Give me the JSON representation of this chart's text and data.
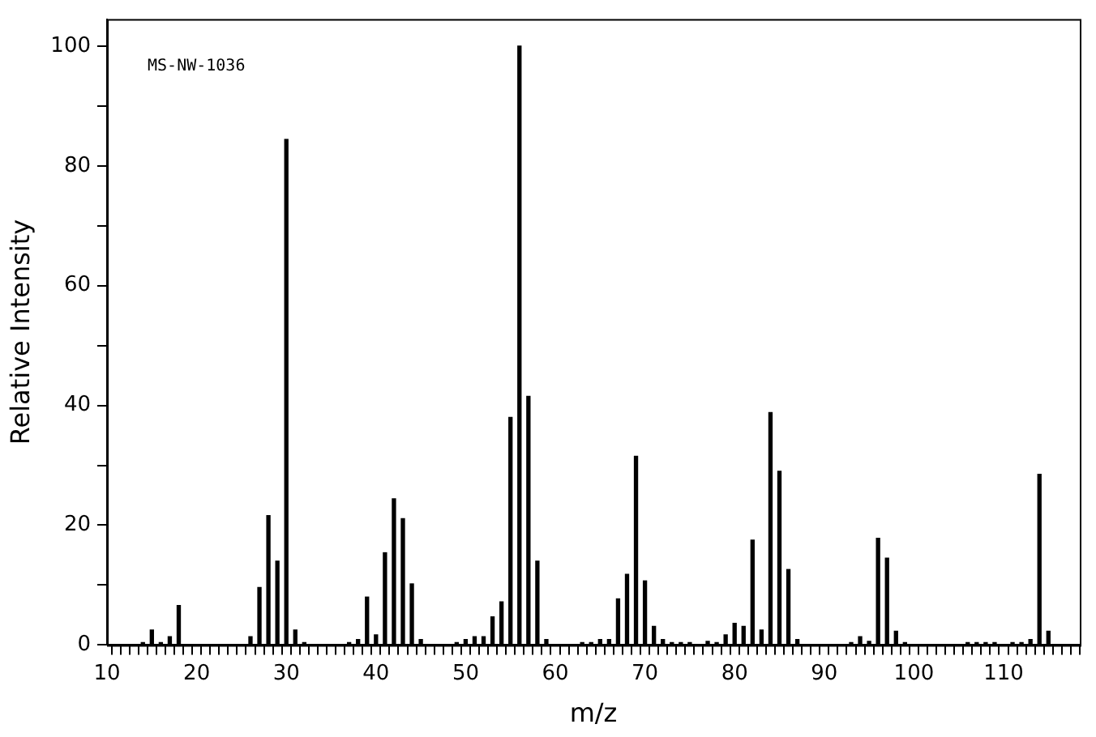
{
  "chart_data": {
    "type": "bar",
    "xlabel": "m/z",
    "ylabel": "Relative Intensity",
    "annotations": [
      "MS-NW-1036"
    ],
    "color": "#000000",
    "grid": false,
    "legend": false,
    "x": [
      14,
      15,
      16,
      17,
      18,
      26,
      27,
      28,
      29,
      30,
      31,
      32,
      37,
      38,
      39,
      40,
      41,
      42,
      43,
      44,
      45,
      49,
      50,
      51,
      52,
      53,
      54,
      55,
      56,
      57,
      58,
      59,
      63,
      64,
      65,
      66,
      67,
      68,
      69,
      70,
      71,
      72,
      73,
      74,
      75,
      77,
      78,
      79,
      80,
      81,
      82,
      83,
      84,
      85,
      86,
      87,
      93,
      94,
      95,
      96,
      97,
      98,
      99,
      106,
      107,
      108,
      109,
      111,
      112,
      113,
      114,
      115
    ],
    "values": [
      0.4,
      2.5,
      0.4,
      1.4,
      6.6,
      1.4,
      9.6,
      21.6,
      14.0,
      84.4,
      2.5,
      0.4,
      0.4,
      0.9,
      8.0,
      1.7,
      15.4,
      24.4,
      21.1,
      10.2,
      0.9,
      0.4,
      0.9,
      1.4,
      1.4,
      4.7,
      7.2,
      38.0,
      100,
      41.5,
      14.0,
      0.9,
      0.4,
      0.4,
      0.9,
      0.9,
      7.7,
      11.8,
      31.5,
      10.7,
      3.1,
      0.9,
      0.4,
      0.4,
      0.4,
      0.6,
      0.4,
      1.7,
      3.6,
      3.1,
      17.5,
      2.5,
      38.8,
      29.0,
      12.6,
      0.9,
      0.4,
      1.4,
      0.6,
      17.8,
      14.5,
      2.3,
      0.4,
      0.4,
      0.4,
      0.4,
      0.4,
      0.4,
      0.4,
      0.9,
      28.5,
      2.3
    ],
    "xlim": [
      10,
      118.5
    ],
    "xticks": [
      10,
      {
        "value": 11,
        "label": null
      },
      {
        "value": 12,
        "label": null
      },
      {
        "value": 13,
        "label": null
      },
      {
        "value": 14,
        "label": null
      },
      {
        "value": 15,
        "label": null
      },
      {
        "value": 16,
        "label": null
      },
      {
        "value": 17,
        "label": null
      },
      {
        "value": 18,
        "label": null
      },
      {
        "value": 19,
        "label": null
      },
      20,
      {
        "value": 21,
        "label": null
      },
      {
        "value": 22,
        "label": null
      },
      {
        "value": 23,
        "label": null
      },
      {
        "value": 24,
        "label": null
      },
      {
        "value": 25,
        "label": null
      },
      {
        "value": 26,
        "label": null
      },
      {
        "value": 27,
        "label": null
      },
      {
        "value": 28,
        "label": null
      },
      {
        "value": 29,
        "label": null
      },
      30,
      {
        "value": 31,
        "label": null
      },
      {
        "value": 32,
        "label": null
      },
      {
        "value": 33,
        "label": null
      },
      {
        "value": 34,
        "label": null
      },
      {
        "value": 35,
        "label": null
      },
      {
        "value": 36,
        "label": null
      },
      {
        "value": 37,
        "label": null
      },
      {
        "value": 38,
        "label": null
      },
      {
        "value": 39,
        "label": null
      },
      40,
      {
        "value": 41,
        "label": null
      },
      {
        "value": 42,
        "label": null
      },
      {
        "value": 43,
        "label": null
      },
      {
        "value": 44,
        "label": null
      },
      {
        "value": 45,
        "label": null
      },
      {
        "value": 46,
        "label": null
      },
      {
        "value": 47,
        "label": null
      },
      {
        "value": 48,
        "label": null
      },
      {
        "value": 49,
        "label": null
      },
      50,
      {
        "value": 51,
        "label": null
      },
      {
        "value": 52,
        "label": null
      },
      {
        "value": 53,
        "label": null
      },
      {
        "value": 54,
        "label": null
      },
      {
        "value": 55,
        "label": null
      },
      {
        "value": 56,
        "label": null
      },
      {
        "value": 57,
        "label": null
      },
      {
        "value": 58,
        "label": null
      },
      {
        "value": 59,
        "label": null
      },
      60,
      {
        "value": 61,
        "label": null
      },
      {
        "value": 62,
        "label": null
      },
      {
        "value": 63,
        "label": null
      },
      {
        "value": 64,
        "label": null
      },
      {
        "value": 65,
        "label": null
      },
      {
        "value": 66,
        "label": null
      },
      {
        "value": 67,
        "label": null
      },
      {
        "value": 68,
        "label": null
      },
      {
        "value": 69,
        "label": null
      },
      70,
      {
        "value": 71,
        "label": null
      },
      {
        "value": 72,
        "label": null
      },
      {
        "value": 73,
        "label": null
      },
      {
        "value": 74,
        "label": null
      },
      {
        "value": 75,
        "label": null
      },
      {
        "value": 76,
        "label": null
      },
      {
        "value": 77,
        "label": null
      },
      {
        "value": 78,
        "label": null
      },
      {
        "value": 79,
        "label": null
      },
      80,
      {
        "value": 81,
        "label": null
      },
      {
        "value": 82,
        "label": null
      },
      {
        "value": 83,
        "label": null
      },
      {
        "value": 84,
        "label": null
      },
      {
        "value": 85,
        "label": null
      },
      {
        "value": 86,
        "label": null
      },
      {
        "value": 87,
        "label": null
      },
      {
        "value": 88,
        "label": null
      },
      {
        "value": 89,
        "label": null
      },
      90,
      {
        "value": 91,
        "label": null
      },
      {
        "value": 92,
        "label": null
      },
      {
        "value": 93,
        "label": null
      },
      {
        "value": 94,
        "label": null
      },
      {
        "value": 95,
        "label": null
      },
      {
        "value": 96,
        "label": null
      },
      {
        "value": 97,
        "label": null
      },
      {
        "value": 98,
        "label": null
      },
      {
        "value": 99,
        "label": null
      },
      100,
      {
        "value": 101,
        "label": null
      },
      {
        "value": 102,
        "label": null
      },
      {
        "value": 103,
        "label": null
      },
      {
        "value": 104,
        "label": null
      },
      {
        "value": 105,
        "label": null
      },
      {
        "value": 106,
        "label": null
      },
      {
        "value": 107,
        "label": null
      },
      {
        "value": 108,
        "label": null
      },
      {
        "value": 109,
        "label": null
      },
      110,
      {
        "value": 111,
        "label": null
      },
      {
        "value": 112,
        "label": null
      },
      {
        "value": 113,
        "label": null
      },
      {
        "value": 114,
        "label": null
      },
      {
        "value": 115,
        "label": null
      },
      {
        "value": 116,
        "label": null
      },
      {
        "value": 117,
        "label": null
      },
      {
        "value": 118,
        "label": null
      }
    ],
    "ylim": [
      0,
      104.5
    ],
    "yticks": [
      0,
      {
        "value": 10,
        "label": null
      },
      20,
      {
        "value": 30,
        "label": null
      },
      40,
      {
        "value": 50,
        "label": null
      },
      60,
      {
        "value": 70,
        "label": null
      },
      80,
      {
        "value": 90,
        "label": null
      },
      100
    ]
  }
}
